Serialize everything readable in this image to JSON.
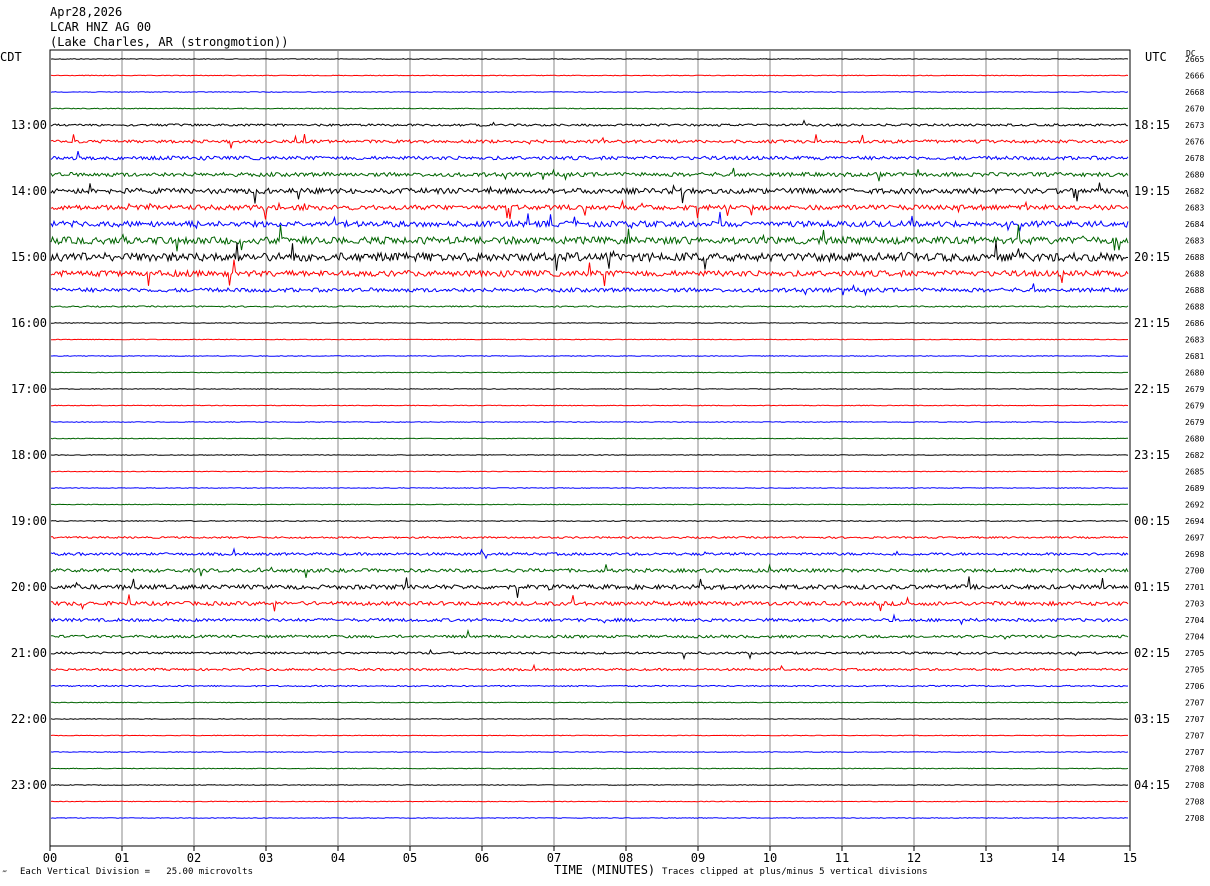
{
  "header": {
    "date": "Apr28,2026",
    "station": "LCAR HNZ AG 00",
    "location": "(Lake Charles, AR (strongmotion))"
  },
  "left_tz": "CDT",
  "right_tz": "UTC",
  "dc_label": "DC",
  "footer": {
    "scale": "Each Vertical Division =   25.00 microvolts",
    "axis_title": "TIME (MINUTES)",
    "clip": "Traces clipped at plus/minus 5 vertical divisions",
    "corner_mark": "‴"
  },
  "chart_data": {
    "type": "line",
    "xlabel": "TIME (MINUTES)",
    "xlim": [
      0,
      15
    ],
    "x_ticks": [
      "00",
      "01",
      "02",
      "03",
      "04",
      "05",
      "06",
      "07",
      "08",
      "09",
      "10",
      "11",
      "12",
      "13",
      "14",
      "15"
    ],
    "hour_labels_local": [
      "13:00",
      "14:00",
      "15:00",
      "16:00",
      "17:00",
      "18:00",
      "19:00",
      "20:00",
      "21:00",
      "22:00",
      "23:00"
    ],
    "hour_labels_utc": [
      "18:15",
      "19:15",
      "20:15",
      "21:15",
      "22:15",
      "23:15",
      "00:15",
      "01:15",
      "02:15",
      "03:15",
      "04:15"
    ],
    "trace_colors": [
      "#000000",
      "#ff0000",
      "#0000ff",
      "#006400"
    ],
    "dc_offsets": [
      "2665",
      "2666",
      "2668",
      "2670",
      "2673",
      "2676",
      "2678",
      "2680",
      "2682",
      "2683",
      "2684",
      "2683",
      "2688",
      "2688",
      "2688",
      "2688",
      "2686",
      "2683",
      "2681",
      "2680",
      "2679",
      "2679",
      "2679",
      "2680",
      "2682",
      "2685",
      "2689",
      "2692",
      "2694",
      "2697",
      "2698",
      "2700",
      "2701",
      "2703",
      "2704",
      "2704",
      "2705",
      "2705",
      "2706",
      "2707",
      "2707",
      "2707",
      "2707",
      "2708",
      "2708",
      "2708",
      "2708"
    ],
    "activity_levels": [
      0.15,
      0.15,
      0.15,
      0.2,
      0.5,
      0.7,
      0.8,
      0.9,
      1.2,
      1.1,
      1.3,
      1.6,
      1.9,
      1.3,
      0.9,
      0.3,
      0.15,
      0.15,
      0.15,
      0.15,
      0.15,
      0.15,
      0.15,
      0.15,
      0.15,
      0.15,
      0.15,
      0.15,
      0.2,
      0.4,
      0.6,
      0.8,
      1.0,
      0.9,
      0.7,
      0.6,
      0.5,
      0.5,
      0.3,
      0.15,
      0.15,
      0.15,
      0.15,
      0.15,
      0.15,
      0.15,
      0.15
    ]
  }
}
